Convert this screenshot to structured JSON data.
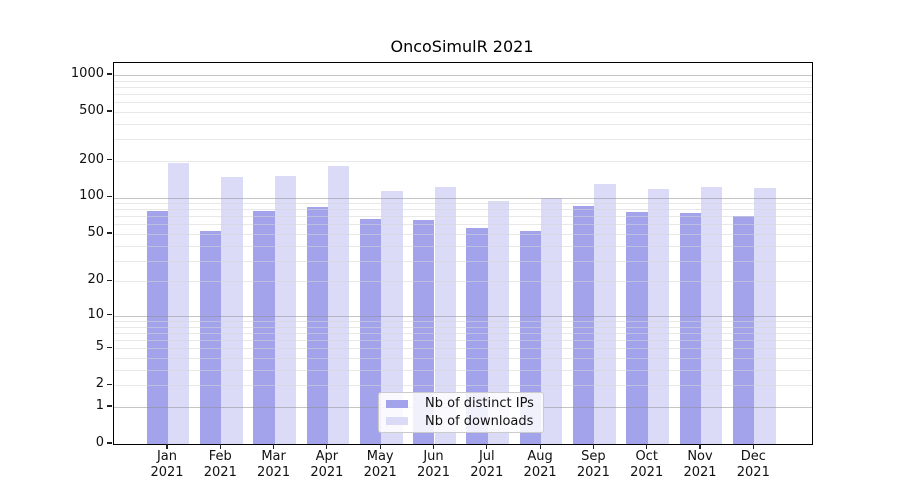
{
  "chart_data": {
    "type": "bar",
    "title": "OncoSimulR 2021",
    "xlabel": "",
    "ylabel": "",
    "y_axis": {
      "scale": "log1p",
      "ylim": [
        0,
        1200
      ],
      "labeled_ticks": [
        0,
        1,
        2,
        5,
        10,
        20,
        50,
        100,
        200,
        500,
        1000
      ],
      "major_gridlines": [
        1,
        10,
        100,
        1000
      ],
      "grid": "on"
    },
    "categories": [
      {
        "month": "Jan",
        "year": "2021"
      },
      {
        "month": "Feb",
        "year": "2021"
      },
      {
        "month": "Mar",
        "year": "2021"
      },
      {
        "month": "Apr",
        "year": "2021"
      },
      {
        "month": "May",
        "year": "2021"
      },
      {
        "month": "Jun",
        "year": "2021"
      },
      {
        "month": "Jul",
        "year": "2021"
      },
      {
        "month": "Aug",
        "year": "2021"
      },
      {
        "month": "Sep",
        "year": "2021"
      },
      {
        "month": "Oct",
        "year": "2021"
      },
      {
        "month": "Nov",
        "year": "2021"
      },
      {
        "month": "Dec",
        "year": "2021"
      }
    ],
    "series": [
      {
        "name": "Nb of distinct IPs",
        "color": "#a3a3ec",
        "values": [
          78,
          53,
          78,
          84,
          67,
          65,
          56,
          53,
          85,
          76,
          74,
          71
        ]
      },
      {
        "name": "Nb of downloads",
        "color": "#dbdbf7",
        "values": [
          192,
          146,
          150,
          182,
          114,
          122,
          94,
          99,
          128,
          117,
          123,
          120
        ]
      }
    ],
    "legend": {
      "position": "lower center"
    }
  }
}
